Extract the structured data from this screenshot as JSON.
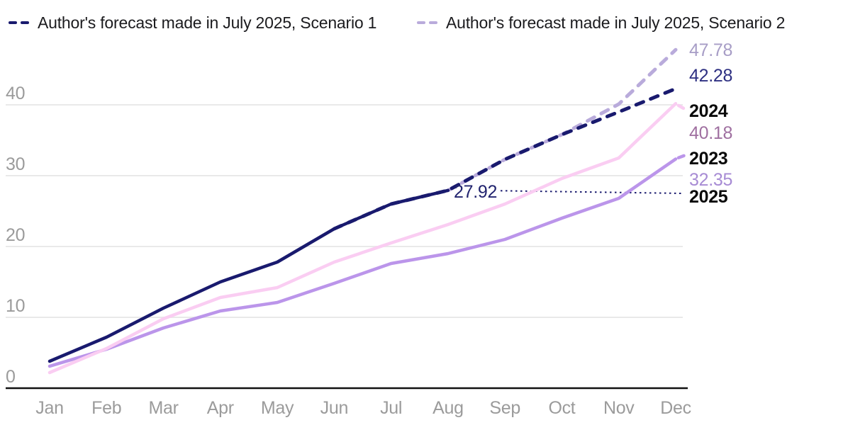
{
  "legend": [
    {
      "label": "Author's forecast made in July 2025, Scenario 1",
      "color": "#191a6e"
    },
    {
      "label": "Author's forecast made in July 2025, Scenario 2",
      "color": "#b9abdb"
    }
  ],
  "chart_data": {
    "type": "line",
    "categories": [
      "Jan",
      "Feb",
      "Mar",
      "Apr",
      "May",
      "Jun",
      "Jul",
      "Aug",
      "Sep",
      "Oct",
      "Nov",
      "Dec"
    ],
    "y_ticks": [
      0,
      10,
      20,
      30,
      40
    ],
    "ylim": [
      0,
      50
    ],
    "grid": "horizontal",
    "legend_position": "top",
    "series": [
      {
        "id": "line-2023",
        "name": "2023",
        "color": "#bb95ea",
        "dashed": false,
        "tail_delta": 0.6,
        "values": [
          3.1,
          5.5,
          8.5,
          10.9,
          12.1,
          14.8,
          17.6,
          19.0,
          21.0,
          24.0,
          26.8,
          32.35
        ]
      },
      {
        "id": "line-2024",
        "name": "2024",
        "color": "#facdf2",
        "dashed": false,
        "tail_delta": -0.9,
        "values": [
          2.2,
          5.6,
          9.8,
          12.8,
          14.2,
          17.8,
          20.5,
          23.1,
          26.0,
          29.6,
          32.5,
          40.18
        ]
      },
      {
        "id": "line-2025-scenario2",
        "name": "Author's forecast made in July 2025, Scenario 2",
        "color": "#b9abdb",
        "dashed": true,
        "tail_delta": null,
        "values": [
          null,
          null,
          null,
          null,
          null,
          null,
          null,
          27.92,
          32.3,
          35.8,
          40.1,
          47.78
        ]
      },
      {
        "id": "line-2025-scenario1",
        "name": "Author's forecast made in July 2025, Scenario 1",
        "color": "#191a6e",
        "dashed": true,
        "tail_delta": null,
        "values": [
          null,
          null,
          null,
          null,
          null,
          22.5,
          26.0,
          27.92,
          32.3,
          35.8,
          39.0,
          42.28
        ]
      },
      {
        "id": "line-2025-actual",
        "name": "2025",
        "color": "#191a6e",
        "dashed": false,
        "tail_delta": null,
        "values": [
          3.8,
          7.2,
          11.3,
          15.0,
          17.8,
          22.5,
          26.0,
          27.92,
          null,
          null,
          null,
          null
        ]
      }
    ],
    "annotations": {
      "aug_2025_value": "27.92",
      "aug_2025_value_color": "#22246f",
      "leader_line_color": "#191a6e",
      "right_labels": [
        {
          "id": "scenario2-final-value",
          "text": "47.78",
          "color": "#a79dc6",
          "bold": false
        },
        {
          "id": "scenario1-final-value",
          "text": "42.28",
          "color": "#2e3082",
          "bold": false
        },
        {
          "id": "year-2024-label",
          "text": "2024",
          "color": "#0a0a0a",
          "bold": true
        },
        {
          "id": "final-value-2024",
          "text": "40.18",
          "color": "#9f6fa0",
          "bold": false
        },
        {
          "id": "year-2023-label",
          "text": "2023",
          "color": "#0a0a0a",
          "bold": true
        },
        {
          "id": "final-value-2023",
          "text": "32.35",
          "color": "#a78bd4",
          "bold": false
        },
        {
          "id": "year-2025-label",
          "text": "2025",
          "color": "#0a0a0a",
          "bold": true
        }
      ]
    },
    "axis_style": {
      "tick_color": "#9b9b9b",
      "grid_color": "#e9e9e9",
      "axis_color": "#111111"
    }
  }
}
